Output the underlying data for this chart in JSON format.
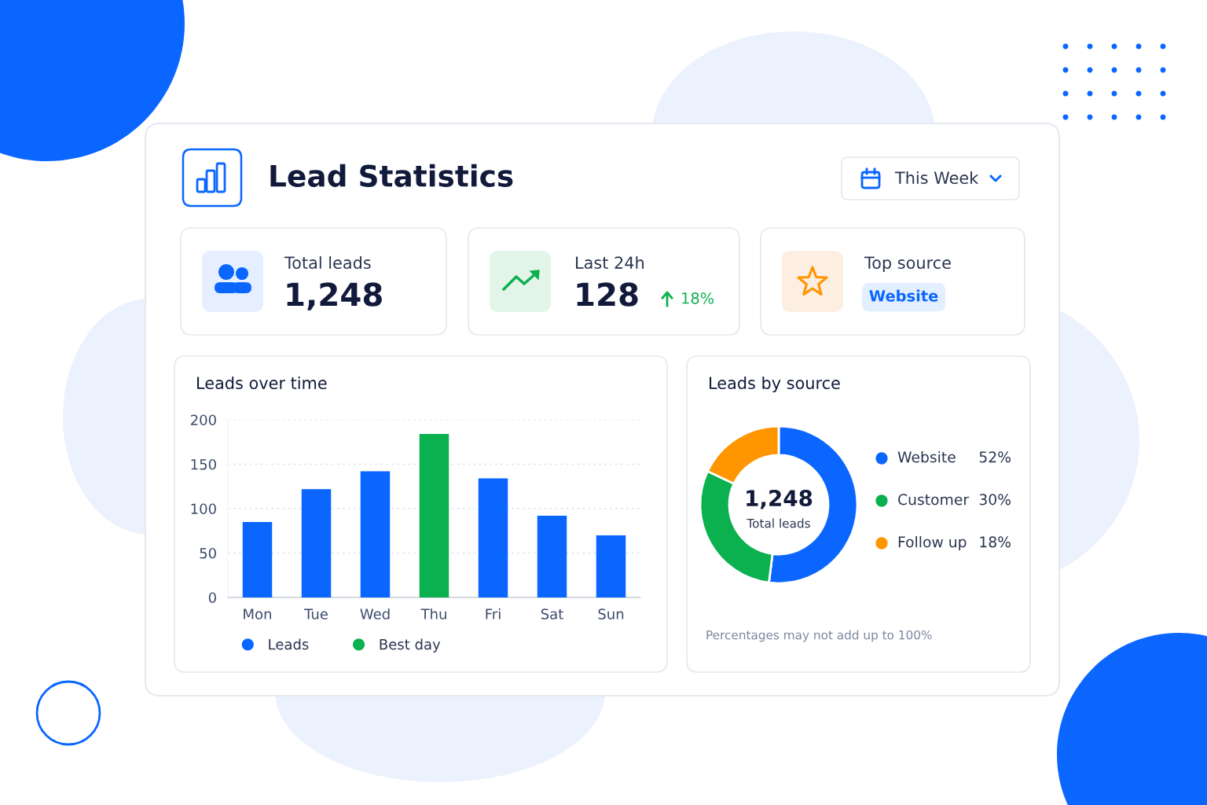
{
  "chart_data": [
    {
      "type": "other",
      "title": "Lead Statistics",
      "annotations": [
        "This Week",
        "Total leads",
        "1,248",
        "Last 24h",
        "128",
        "18%",
        "Top source",
        "Website"
      ]
    },
    {
      "type": "bar",
      "title": "Leads over time",
      "categories": [
        "Mon",
        "Tue",
        "Wed",
        "Thu",
        "Fri",
        "Sat",
        "Sun"
      ],
      "series": [
        {
          "name": "Leads",
          "color": "#0a66ff",
          "values": [
            85,
            122,
            142,
            null,
            134,
            92,
            70
          ]
        },
        {
          "name": "Best day",
          "color": "#0bb04f",
          "values": [
            null,
            null,
            null,
            184,
            null,
            null,
            null
          ]
        }
      ],
      "ylim": [
        0,
        200
      ],
      "yticks": [
        0,
        50,
        100,
        150,
        200
      ],
      "grid": "y",
      "legend": "bottom"
    },
    {
      "type": "donut",
      "title": "Leads by source",
      "categories": [
        "Website",
        "Customer",
        "Follow up"
      ],
      "values": [
        52,
        30,
        18
      ],
      "colors": [
        "#0a66ff",
        "#0bb04f",
        "#ff9500"
      ],
      "value_labels": [
        "52%",
        "30%",
        "18%"
      ],
      "legend": "right",
      "annotations": [
        "1,248",
        "Total leads",
        "Percentages may not add up to 100%"
      ]
    }
  ]
}
